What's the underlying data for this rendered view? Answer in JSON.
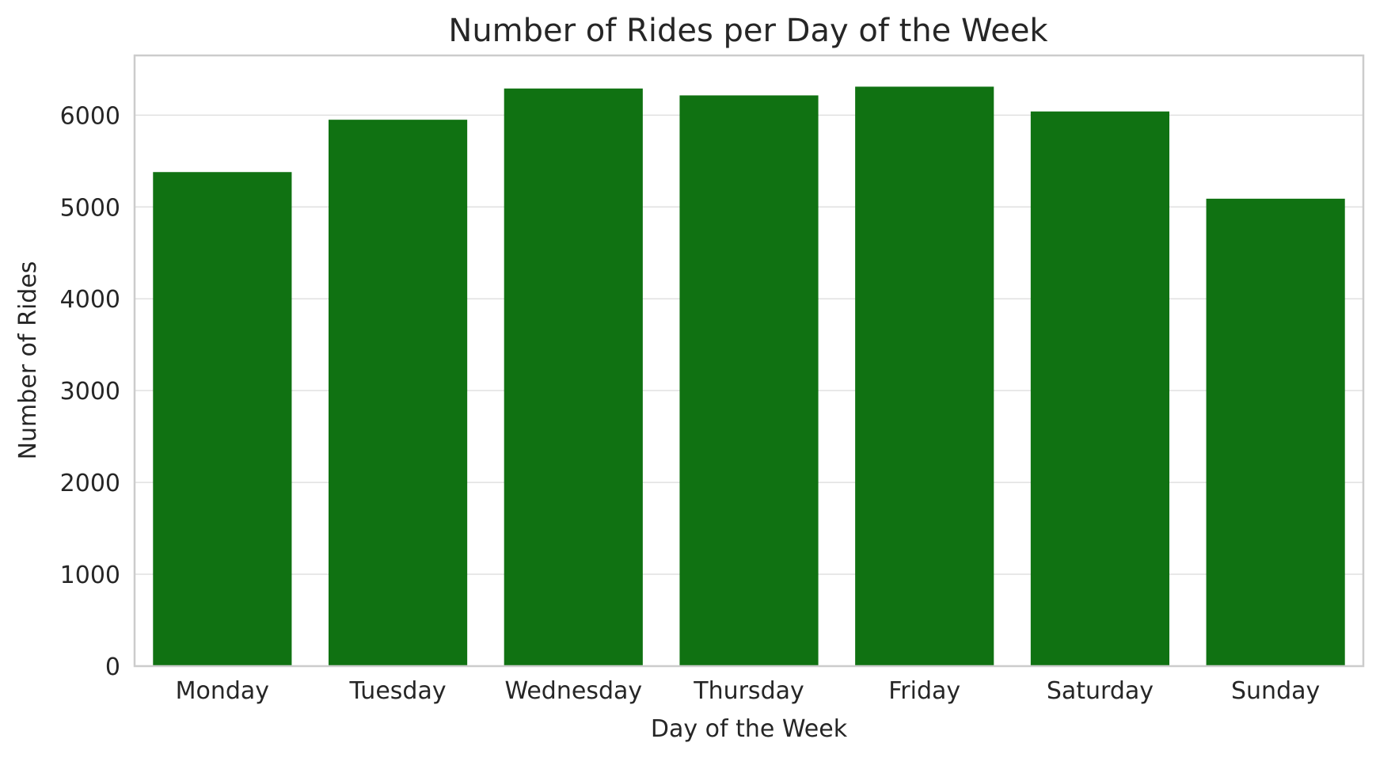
{
  "chart_data": {
    "type": "bar",
    "title": "Number of Rides per Day of the Week",
    "xlabel": "Day of the Week",
    "ylabel": "Number of Rides",
    "categories": [
      "Monday",
      "Tuesday",
      "Wednesday",
      "Thursday",
      "Friday",
      "Saturday",
      "Sunday"
    ],
    "values": [
      5380,
      5950,
      6290,
      6215,
      6310,
      6040,
      5090
    ],
    "ylim": [
      0,
      6650
    ],
    "yticks": [
      0,
      1000,
      2000,
      3000,
      4000,
      5000,
      6000
    ],
    "grid": "y",
    "legend": "none",
    "bar_color": "#107212"
  }
}
